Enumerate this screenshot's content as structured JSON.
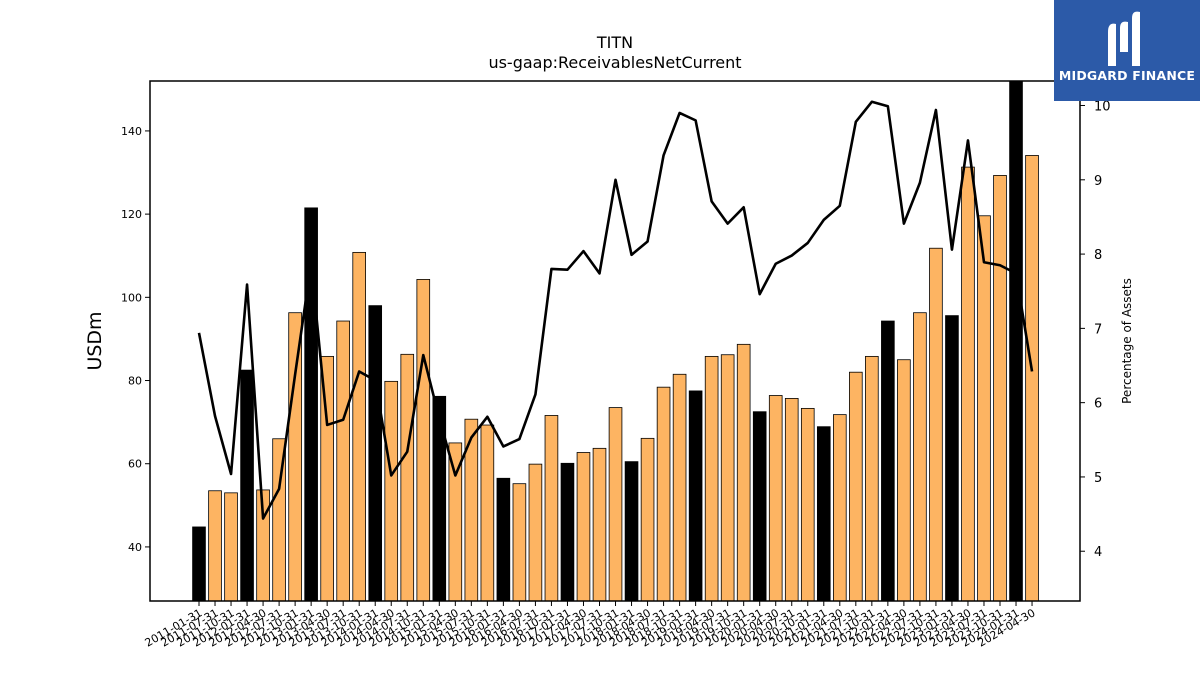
{
  "brand": {
    "name": "MIDGARD FINANCE",
    "bg_color": "#2c5aa8"
  },
  "chart_data": {
    "type": "bar",
    "title": "TITN",
    "subtitle": "us-gaap:ReceivablesNetCurrent",
    "ylabel": "USDm",
    "ylabel_right": "Percentage of Assets",
    "ylim": [
      27,
      152
    ],
    "ylim_right": [
      3.33,
      10.33
    ],
    "yticks": [
      40,
      60,
      80,
      100,
      120,
      140
    ],
    "yticks_right": [
      4,
      5,
      6,
      7,
      8,
      9,
      10
    ],
    "bar_color": "#fdb462",
    "highlight_color": "#000000",
    "line_color": "#000000",
    "categories": [
      "2011-01-31",
      "2011-07-31",
      "2011-10-31",
      "2012-01-31",
      "2012-04-30",
      "2012-07-31",
      "2012-10-31",
      "2013-01-31",
      "2013-04-30",
      "2013-07-31",
      "2013-10-31",
      "2014-01-31",
      "2014-04-30",
      "2014-07-31",
      "2014-10-31",
      "2015-01-31",
      "2015-04-30",
      "2015-07-31",
      "2015-10-31",
      "2016-01-31",
      "2016-04-30",
      "2016-07-31",
      "2016-10-31",
      "2017-01-31",
      "2017-04-30",
      "2017-07-31",
      "2017-10-31",
      "2018-01-31",
      "2018-04-30",
      "2018-07-31",
      "2018-10-31",
      "2019-01-31",
      "2019-04-30",
      "2019-07-31",
      "2019-10-31",
      "2020-01-31",
      "2020-04-30",
      "2020-07-31",
      "2020-10-31",
      "2021-01-31",
      "2021-04-30",
      "2021-07-31",
      "2021-10-31",
      "2022-01-31",
      "2022-04-30",
      "2022-07-31",
      "2022-10-31",
      "2023-01-31",
      "2023-04-30",
      "2023-07-31",
      "2023-10-31",
      "2024-01-31",
      "2024-04-30"
    ],
    "series": [
      {
        "kind": "bar",
        "values": [
          44.8,
          53.5,
          53,
          82.5,
          53.7,
          66,
          96.3,
          121.5,
          85.8,
          94.3,
          110.8,
          98,
          79.8,
          86.3,
          104.3,
          76.2,
          65,
          70.7,
          69.3,
          56.5,
          55.2,
          59.9,
          71.6,
          60.1,
          62.7,
          63.7,
          73.5,
          60.5,
          66.1,
          78.4,
          81.5,
          77.5,
          85.8,
          86.2,
          88.7,
          72.5,
          76.4,
          75.7,
          73.3,
          68.9,
          71.8,
          82,
          85.8,
          94.3,
          85,
          96.3,
          111.8,
          95.6,
          131.3,
          119.6,
          129.3,
          152,
          134.1
        ],
        "highlight": [
          true,
          false,
          false,
          true,
          false,
          false,
          false,
          true,
          false,
          false,
          false,
          true,
          false,
          false,
          false,
          true,
          false,
          false,
          false,
          true,
          false,
          false,
          false,
          true,
          false,
          false,
          false,
          true,
          false,
          false,
          false,
          true,
          false,
          false,
          false,
          true,
          false,
          false,
          false,
          true,
          false,
          false,
          false,
          true,
          false,
          false,
          false,
          true,
          false,
          false,
          false,
          true,
          false
        ]
      },
      {
        "kind": "line",
        "axis": "right",
        "values": [
          6.94,
          5.82,
          5.04,
          7.59,
          4.44,
          4.84,
          6.38,
          7.88,
          5.7,
          5.77,
          6.42,
          6.3,
          5.02,
          5.34,
          6.64,
          5.79,
          5.02,
          5.53,
          5.81,
          5.41,
          5.51,
          6.11,
          7.8,
          7.79,
          8.04,
          7.74,
          9,
          7.99,
          8.17,
          9.33,
          9.9,
          9.8,
          8.71,
          8.41,
          8.63,
          7.46,
          7.87,
          7.98,
          8.15,
          8.46,
          8.65,
          9.78,
          10.05,
          9.99,
          8.41,
          8.96,
          9.94,
          8.06,
          9.53,
          7.89,
          7.85,
          7.74,
          6.42
        ]
      }
    ]
  }
}
